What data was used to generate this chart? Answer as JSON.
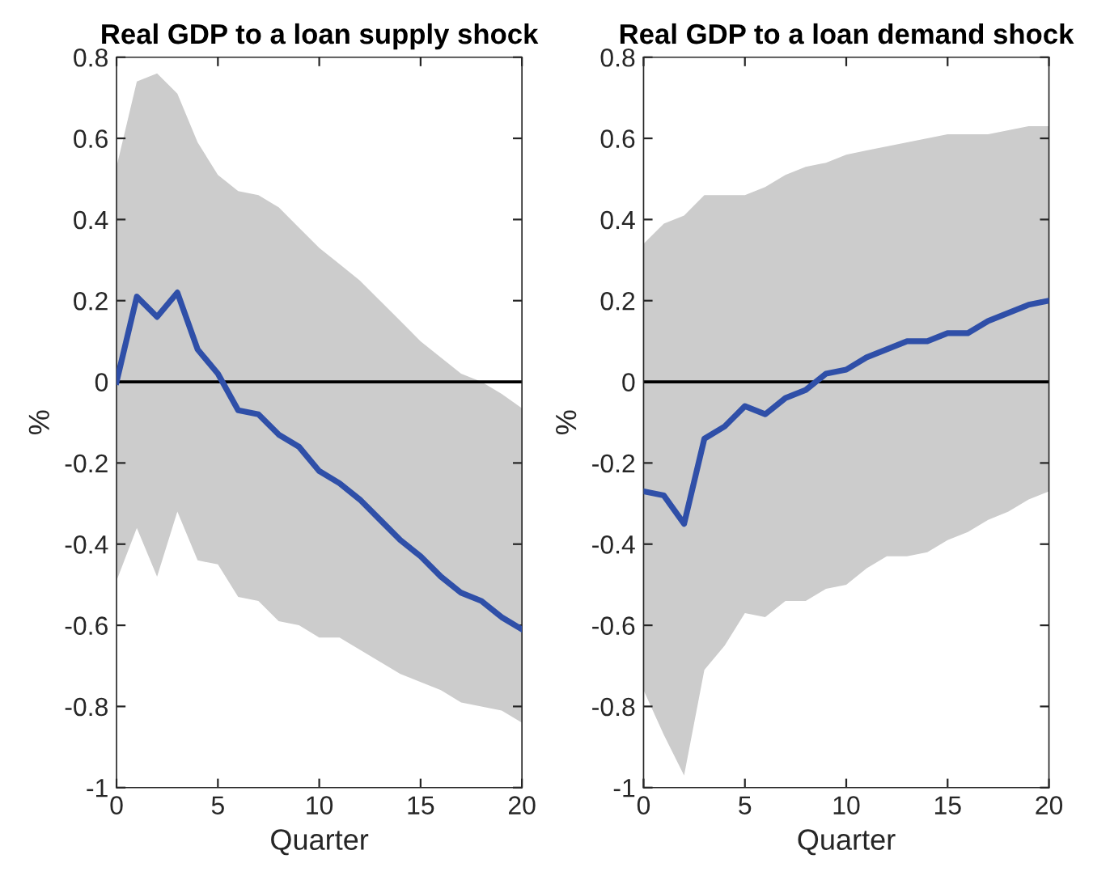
{
  "chart_data": [
    {
      "type": "line",
      "title": "Real GDP to a loan supply shock",
      "xlabel": "Quarter",
      "ylabel": "%",
      "x": [
        0,
        1,
        2,
        3,
        4,
        5,
        6,
        7,
        8,
        9,
        10,
        11,
        12,
        13,
        14,
        15,
        16,
        17,
        18,
        19,
        20
      ],
      "series": [
        {
          "color": "#2f4fa8",
          "values": [
            0,
            0.21,
            0.16,
            0.22,
            0.08,
            0.02,
            -0.07,
            -0.08,
            -0.13,
            -0.16,
            -0.22,
            -0.25,
            -0.29,
            -0.34,
            -0.39,
            -0.43,
            -0.48,
            -0.52,
            -0.54,
            -0.58,
            -0.61
          ],
          "lower": [
            -0.49,
            -0.36,
            -0.48,
            -0.32,
            -0.44,
            -0.45,
            -0.53,
            -0.54,
            -0.59,
            -0.6,
            -0.63,
            -0.63,
            -0.66,
            -0.69,
            -0.72,
            -0.74,
            -0.76,
            -0.79,
            -0.8,
            -0.81,
            -0.84
          ],
          "upper": [
            0.53,
            0.74,
            0.76,
            0.71,
            0.59,
            0.51,
            0.47,
            0.46,
            0.43,
            0.38,
            0.33,
            0.29,
            0.25,
            0.2,
            0.15,
            0.1,
            0.06,
            0.02,
            0.0,
            -0.03,
            -0.065
          ]
        }
      ],
      "ref_lines": [
        {
          "axis": "y",
          "value": 0,
          "color": "#000000"
        }
      ],
      "xlim": [
        0,
        20
      ],
      "xticks": [
        0,
        5,
        10,
        15,
        20
      ],
      "ylim": [
        -1,
        0.8
      ],
      "yticks": [
        -1,
        -0.8,
        -0.6,
        -0.4,
        -0.2,
        0,
        0.2,
        0.4,
        0.6,
        0.8
      ],
      "grid": false,
      "legend": false
    },
    {
      "type": "line",
      "title": "Real GDP to a loan demand shock",
      "xlabel": "Quarter",
      "ylabel": "%",
      "x": [
        0,
        1,
        2,
        3,
        4,
        5,
        6,
        7,
        8,
        9,
        10,
        11,
        12,
        13,
        14,
        15,
        16,
        17,
        18,
        19,
        20
      ],
      "series": [
        {
          "color": "#2f4fa8",
          "values": [
            -0.27,
            -0.28,
            -0.35,
            -0.14,
            -0.11,
            -0.06,
            -0.08,
            -0.04,
            -0.02,
            0.02,
            0.03,
            0.06,
            0.08,
            0.1,
            0.1,
            0.12,
            0.12,
            0.15,
            0.17,
            0.19,
            0.2
          ],
          "lower": [
            -0.76,
            -0.87,
            -0.97,
            -0.71,
            -0.65,
            -0.57,
            -0.58,
            -0.54,
            -0.54,
            -0.51,
            -0.5,
            -0.46,
            -0.43,
            -0.43,
            -0.42,
            -0.39,
            -0.37,
            -0.34,
            -0.32,
            -0.29,
            -0.27
          ],
          "upper": [
            0.34,
            0.39,
            0.41,
            0.46,
            0.46,
            0.46,
            0.48,
            0.51,
            0.53,
            0.54,
            0.56,
            0.57,
            0.58,
            0.59,
            0.6,
            0.61,
            0.61,
            0.61,
            0.62,
            0.63,
            0.63
          ]
        }
      ],
      "ref_lines": [
        {
          "axis": "y",
          "value": 0,
          "color": "#000000"
        }
      ],
      "xlim": [
        0,
        20
      ],
      "xticks": [
        0,
        5,
        10,
        15,
        20
      ],
      "ylim": [
        -1,
        0.8
      ],
      "yticks": [
        -1,
        -0.8,
        -0.6,
        -0.4,
        -0.2,
        0,
        0.2,
        0.4,
        0.6,
        0.8
      ],
      "grid": false,
      "legend": false
    }
  ]
}
